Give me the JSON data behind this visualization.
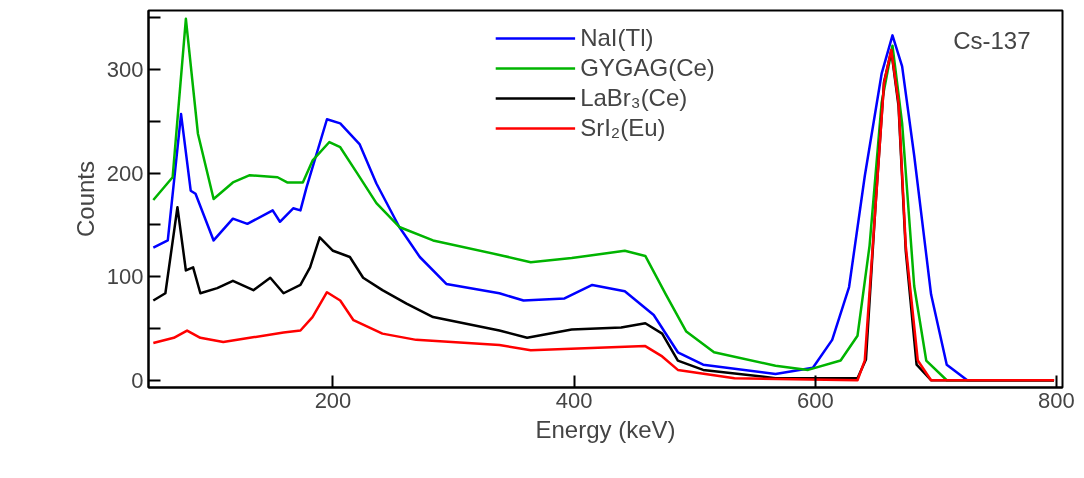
{
  "chart_data": {
    "type": "line",
    "xlabel": "Energy (keV)",
    "ylabel": "Counts",
    "xlim": [
      47,
      805
    ],
    "ylim": [
      -7,
      357
    ],
    "xticks": [
      200,
      400,
      600,
      800
    ],
    "yticks": [
      0,
      {
        "value": 50,
        "label": null
      },
      100,
      {
        "value": 150,
        "label": null
      },
      200,
      {
        "value": 250,
        "label": null
      },
      300,
      {
        "value": 350,
        "label": null
      }
    ],
    "grid": false,
    "legend": "top",
    "marker": "none",
    "line_style": "solid",
    "annotations": [
      "Cs-137"
    ],
    "series": [
      {
        "name": "NaI(Tl)",
        "color": "#0000ff",
        "x": [
          51,
          63,
          74,
          82,
          86,
          101,
          117,
          129,
          150,
          156,
          167,
          173,
          178,
          195,
          206,
          222,
          236,
          255,
          272,
          294,
          338,
          358,
          392,
          415,
          442,
          466,
          486,
          507,
          567,
          598,
          614,
          628,
          641,
          655,
          664,
          672,
          682,
          696,
          709,
          726,
          798
        ],
        "values": [
          128,
          135,
          257,
          183,
          180,
          135,
          156,
          151,
          164,
          153,
          166,
          164,
          186,
          252,
          248,
          228,
          190,
          148,
          119,
          93,
          84,
          77,
          79,
          92,
          86,
          63,
          27,
          15,
          6,
          12,
          39,
          90,
          197,
          296,
          333,
          303,
          217,
          83,
          15,
          0,
          0
        ]
      },
      {
        "name": "GYGAG(Ce)",
        "color": "#00b400",
        "x": [
          51,
          67,
          78,
          88,
          101,
          117,
          131,
          154,
          162,
          175,
          183,
          197,
          206,
          220,
          236,
          255,
          283,
          338,
          364,
          398,
          442,
          459,
          476,
          493,
          516,
          567,
          594,
          621,
          635,
          645,
          655,
          664,
          672,
          682,
          692,
          709,
          798
        ],
        "values": [
          174,
          196,
          349,
          238,
          175,
          191,
          198,
          196,
          191,
          191,
          212,
          230,
          225,
          200,
          171,
          148,
          135,
          121,
          114,
          118,
          125,
          120,
          83,
          47,
          27,
          14,
          10,
          19,
          43,
          130,
          268,
          323,
          248,
          91,
          19,
          0,
          0
        ]
      },
      {
        "name": "LaBr₃(Ce)",
        "color": "#000000",
        "x": [
          51,
          61,
          71,
          78,
          84,
          90,
          104,
          117,
          134,
          148,
          159,
          173,
          181,
          189,
          200,
          214,
          225,
          241,
          261,
          283,
          338,
          361,
          398,
          439,
          459,
          473,
          486,
          507,
          567,
          635,
          642,
          650,
          657,
          663,
          669,
          675,
          684,
          696,
          798
        ],
        "values": [
          77,
          84,
          167,
          106,
          109,
          84,
          89,
          96,
          87,
          99,
          84,
          92,
          109,
          138,
          125,
          119,
          99,
          87,
          74,
          61,
          48,
          41,
          49,
          51,
          55,
          45,
          19,
          10,
          2,
          2,
          20,
          170,
          288,
          318,
          265,
          125,
          15,
          0,
          0
        ]
      },
      {
        "name": "SrI₂(Eu)",
        "color": "#ff0000",
        "x": [
          51,
          68,
          79,
          90,
          109,
          131,
          159,
          173,
          183,
          195,
          206,
          217,
          241,
          269,
          338,
          364,
          459,
          473,
          486,
          533,
          635,
          641,
          650,
          657,
          663,
          669,
          675,
          685,
          696,
          798
        ],
        "values": [
          36,
          41,
          48,
          41,
          37,
          41,
          46,
          48,
          61,
          85,
          77,
          58,
          45,
          39,
          34,
          29,
          33,
          23,
          10,
          2,
          0,
          19,
          169,
          287,
          319,
          268,
          130,
          19,
          0,
          0
        ]
      }
    ]
  }
}
